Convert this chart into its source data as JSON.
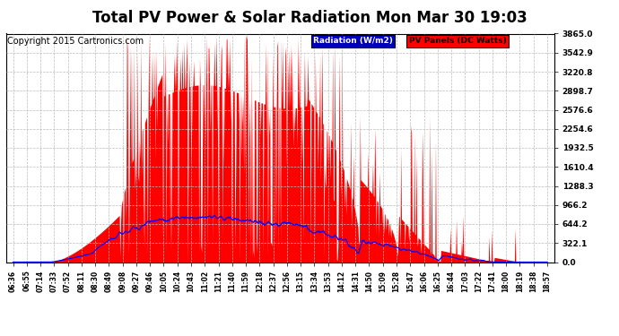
{
  "title": "Total PV Power & Solar Radiation Mon Mar 30 19:03",
  "copyright": "Copyright 2015 Cartronics.com",
  "legend_radiation": "Radiation (W/m2)",
  "legend_pv": "PV Panels (DC Watts)",
  "ymax": 3865.0,
  "yticks": [
    0.0,
    322.1,
    644.2,
    966.2,
    1288.3,
    1610.4,
    1932.5,
    2254.6,
    2576.6,
    2898.7,
    3220.8,
    3542.9,
    3865.0
  ],
  "ytick_labels": [
    "0.0",
    "322.1",
    "644.2",
    "966.2",
    "1288.3",
    "1610.4",
    "1932.5",
    "2254.6",
    "2576.6",
    "2898.7",
    "3220.8",
    "3542.9",
    "3865.0"
  ],
  "bg_color": "#ffffff",
  "plot_bg_color": "#ffffff",
  "grid_color": "#bbbbbb",
  "pv_color": "#ff0000",
  "radiation_color": "#0000ff",
  "title_fontsize": 12,
  "copyright_fontsize": 7
}
